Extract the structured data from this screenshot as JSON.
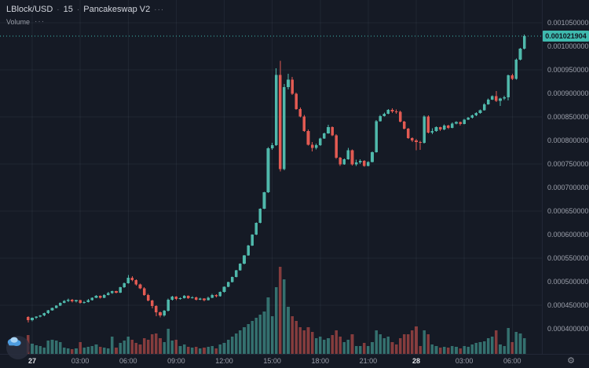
{
  "header": {
    "symbol": "LBlock/USD",
    "interval": "15",
    "separator": "·",
    "venue": "Pancakeswap V2",
    "more_label": "···",
    "indicator": "Volume",
    "indicator_more_label": "···"
  },
  "price_scale": {
    "current_price_label": "0.001021904"
  },
  "time_scale": {
    "labels": [
      {
        "text": "27",
        "major": true
      },
      {
        "text": "03:00",
        "major": false
      },
      {
        "text": "06:00",
        "major": false
      },
      {
        "text": "09:00",
        "major": false
      },
      {
        "text": "12:00",
        "major": false
      },
      {
        "text": "15:00",
        "major": false
      },
      {
        "text": "18:00",
        "major": false
      },
      {
        "text": "21:00",
        "major": false
      },
      {
        "text": "28",
        "major": true
      },
      {
        "text": "03:00",
        "major": false
      },
      {
        "text": "06:00",
        "major": false
      }
    ]
  },
  "colors": {
    "background": "#151a25",
    "grid": "rgba(168,178,210,0.07)",
    "up": "#4fb8ab",
    "down": "#e25a52",
    "volume_up": "rgba(79,184,171,0.55)",
    "volume_down": "rgba(226,90,82,0.55)",
    "axis_text": "#9da1ac",
    "badge_bg": "#3fbaae",
    "badge_text": "#0f141f",
    "price_line": "#3fbaae",
    "logo_blue": "#4e9de0",
    "logo_blue_light": "#a8d4f5"
  },
  "chart_data": {
    "type": "candlestick",
    "title": "LBlock/USD 15 Pancakeswap V2",
    "interval": "15m",
    "price_unit": 1e-06,
    "y_axis": {
      "min_micro": 400,
      "max_micro": 1050,
      "tick_micro": 50,
      "grid_every_micro": 100,
      "label_decimals": 9
    },
    "current_price": 0.001021904,
    "legend_note": "values in micro-USD; columns open,high,low,close,volume_rel",
    "columns": [
      "open",
      "high",
      "low",
      "close",
      "volume_rel"
    ],
    "candles": [
      [
        425,
        427,
        413,
        418,
        24
      ],
      [
        418,
        424,
        416,
        423,
        13
      ],
      [
        423,
        427,
        421,
        426,
        11
      ],
      [
        426,
        429,
        424,
        428,
        10
      ],
      [
        428,
        434,
        427,
        433,
        8
      ],
      [
        433,
        440,
        432,
        439,
        17
      ],
      [
        439,
        445,
        438,
        444,
        18
      ],
      [
        444,
        450,
        443,
        449,
        17
      ],
      [
        449,
        456,
        448,
        455,
        15
      ],
      [
        455,
        461,
        454,
        459,
        8
      ],
      [
        459,
        464,
        457,
        462,
        7
      ],
      [
        462,
        463,
        456,
        458,
        6
      ],
      [
        458,
        462,
        456,
        461,
        7
      ],
      [
        461,
        462,
        453,
        455,
        15
      ],
      [
        455,
        459,
        453,
        457,
        8
      ],
      [
        457,
        463,
        456,
        461,
        9
      ],
      [
        461,
        467,
        460,
        466,
        10
      ],
      [
        466,
        472,
        465,
        470,
        12
      ],
      [
        470,
        471,
        464,
        466,
        9
      ],
      [
        466,
        473,
        465,
        472,
        8
      ],
      [
        472,
        478,
        471,
        476,
        7
      ],
      [
        476,
        481,
        474,
        480,
        22
      ],
      [
        480,
        481,
        475,
        477,
        8
      ],
      [
        477,
        489,
        476,
        488,
        14
      ],
      [
        488,
        498,
        487,
        497,
        17
      ],
      [
        497,
        514,
        496,
        508,
        22
      ],
      [
        508,
        512,
        501,
        503,
        18
      ],
      [
        503,
        505,
        492,
        494,
        14
      ],
      [
        494,
        496,
        484,
        486,
        12
      ],
      [
        486,
        488,
        470,
        472,
        20
      ],
      [
        472,
        474,
        458,
        460,
        18
      ],
      [
        460,
        462,
        443,
        448,
        25
      ],
      [
        448,
        450,
        427,
        435,
        26
      ],
      [
        435,
        437,
        424,
        428,
        20
      ],
      [
        428,
        440,
        426,
        438,
        15
      ],
      [
        438,
        464,
        437,
        462,
        32
      ],
      [
        462,
        470,
        460,
        468,
        17
      ],
      [
        468,
        469,
        461,
        463,
        18
      ],
      [
        463,
        467,
        462,
        465,
        10
      ],
      [
        465,
        472,
        464,
        470,
        12
      ],
      [
        470,
        471,
        463,
        465,
        9
      ],
      [
        465,
        469,
        464,
        467,
        8
      ],
      [
        467,
        468,
        460,
        462,
        9
      ],
      [
        462,
        466,
        461,
        464,
        7
      ],
      [
        464,
        465,
        458,
        461,
        8
      ],
      [
        461,
        468,
        460,
        466,
        9
      ],
      [
        466,
        474,
        465,
        472,
        10
      ],
      [
        472,
        473,
        467,
        469,
        7
      ],
      [
        469,
        479,
        468,
        478,
        12
      ],
      [
        478,
        490,
        477,
        489,
        14
      ],
      [
        489,
        500,
        488,
        499,
        18
      ],
      [
        499,
        511,
        498,
        510,
        22
      ],
      [
        510,
        525,
        509,
        524,
        26
      ],
      [
        524,
        539,
        523,
        538,
        30
      ],
      [
        538,
        557,
        537,
        556,
        34
      ],
      [
        556,
        578,
        555,
        577,
        38
      ],
      [
        577,
        601,
        576,
        600,
        42
      ],
      [
        600,
        626,
        599,
        625,
        46
      ],
      [
        625,
        656,
        624,
        655,
        50
      ],
      [
        655,
        691,
        654,
        690,
        54
      ],
      [
        690,
        786,
        688,
        783,
        72
      ],
      [
        783,
        795,
        780,
        790,
        48
      ],
      [
        790,
        953,
        788,
        939,
        85
      ],
      [
        939,
        969,
        734,
        739,
        111
      ],
      [
        739,
        920,
        737,
        913,
        95
      ],
      [
        913,
        942,
        908,
        929,
        60
      ],
      [
        929,
        935,
        897,
        899,
        48
      ],
      [
        899,
        902,
        865,
        867,
        42
      ],
      [
        867,
        870,
        849,
        851,
        34
      ],
      [
        851,
        854,
        818,
        820,
        30
      ],
      [
        820,
        823,
        789,
        791,
        34
      ],
      [
        791,
        797,
        777,
        784,
        28
      ],
      [
        784,
        793,
        781,
        790,
        20
      ],
      [
        790,
        806,
        788,
        804,
        22
      ],
      [
        804,
        817,
        803,
        815,
        18
      ],
      [
        815,
        833,
        814,
        828,
        20
      ],
      [
        828,
        830,
        809,
        811,
        24
      ],
      [
        811,
        813,
        761,
        763,
        30
      ],
      [
        763,
        765,
        746,
        749,
        22
      ],
      [
        749,
        762,
        748,
        760,
        15
      ],
      [
        760,
        784,
        759,
        779,
        18
      ],
      [
        779,
        781,
        747,
        749,
        25
      ],
      [
        749,
        759,
        746,
        753,
        10
      ],
      [
        753,
        760,
        750,
        757,
        10
      ],
      [
        757,
        758,
        744,
        746,
        14
      ],
      [
        746,
        756,
        745,
        754,
        10
      ],
      [
        754,
        777,
        753,
        775,
        15
      ],
      [
        775,
        843,
        774,
        841,
        30
      ],
      [
        841,
        854,
        840,
        852,
        25
      ],
      [
        852,
        859,
        851,
        857,
        20
      ],
      [
        857,
        867,
        856,
        865,
        22
      ],
      [
        865,
        868,
        858,
        862,
        15
      ],
      [
        862,
        866,
        857,
        861,
        12
      ],
      [
        861,
        863,
        838,
        840,
        20
      ],
      [
        840,
        842,
        823,
        825,
        25
      ],
      [
        825,
        827,
        803,
        805,
        25
      ],
      [
        805,
        807,
        797,
        800,
        30
      ],
      [
        800,
        803,
        779,
        797,
        35
      ],
      [
        797,
        799,
        780,
        795,
        10
      ],
      [
        795,
        853,
        793,
        851,
        30
      ],
      [
        851,
        853,
        815,
        817,
        25
      ],
      [
        817,
        826,
        813,
        820,
        12
      ],
      [
        820,
        830,
        818,
        828,
        10
      ],
      [
        828,
        829,
        820,
        823,
        8
      ],
      [
        823,
        834,
        822,
        832,
        9
      ],
      [
        832,
        833,
        824,
        827,
        8
      ],
      [
        827,
        838,
        826,
        836,
        10
      ],
      [
        836,
        841,
        834,
        839,
        9
      ],
      [
        839,
        840,
        832,
        835,
        7
      ],
      [
        835,
        846,
        834,
        844,
        10
      ],
      [
        844,
        850,
        843,
        848,
        9
      ],
      [
        848,
        855,
        847,
        853,
        12
      ],
      [
        853,
        860,
        852,
        858,
        14
      ],
      [
        858,
        866,
        857,
        864,
        15
      ],
      [
        864,
        879,
        863,
        877,
        16
      ],
      [
        877,
        889,
        876,
        887,
        20
      ],
      [
        887,
        896,
        886,
        894,
        22
      ],
      [
        894,
        905,
        882,
        884,
        30
      ],
      [
        884,
        891,
        873,
        889,
        12
      ],
      [
        889,
        895,
        886,
        892,
        10
      ],
      [
        892,
        940,
        885,
        938,
        33
      ],
      [
        938,
        942,
        928,
        931,
        15
      ],
      [
        931,
        974,
        929,
        972,
        28
      ],
      [
        972,
        997,
        970,
        995,
        26
      ],
      [
        995,
        1025,
        993,
        1022,
        20
      ]
    ]
  }
}
